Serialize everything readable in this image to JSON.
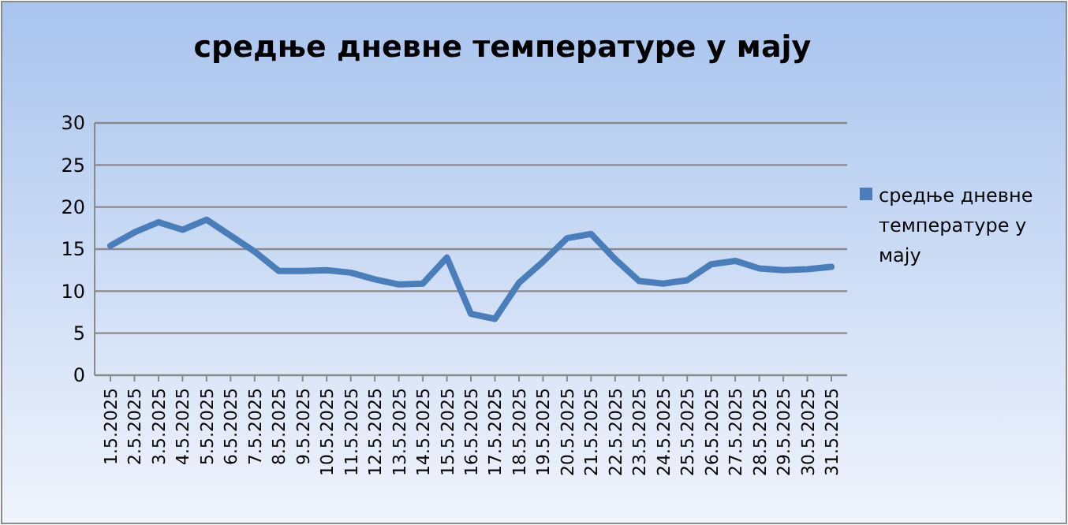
{
  "chart_data": {
    "type": "line",
    "title": "средње дневне температуре у мају",
    "categories": [
      "1.5.2025",
      "2.5.2025",
      "3.5.2025",
      "4.5.2025",
      "5.5.2025",
      "6.5.2025",
      "7.5.2025",
      "8.5.2025",
      "9.5.2025",
      "10.5.2025",
      "11.5.2025",
      "12.5.2025",
      "13.5.2025",
      "14.5.2025",
      "15.5.2025",
      "16.5.2025",
      "17.5.2025",
      "18.5.2025",
      "19.5.2025",
      "20.5.2025",
      "21.5.2025",
      "22.5.2025",
      "23.5.2025",
      "24.5.2025",
      "25.5.2025",
      "26.5.2025",
      "27.5.2025",
      "28.5.2025",
      "29.5.2025",
      "30.5.2025",
      "31.5.2025"
    ],
    "series": [
      {
        "name": "средње дневне температуре у мају",
        "color": "#4a7ebb",
        "values": [
          15.4,
          17,
          18.2,
          17.3,
          18.5,
          16.6,
          14.7,
          12.4,
          12.4,
          12.5,
          12.2,
          11.4,
          10.8,
          10.9,
          14,
          7.3,
          6.7,
          11,
          13.5,
          16.3,
          16.8,
          13.8,
          11.2,
          10.9,
          11.3,
          13.2,
          13.6,
          12.7,
          12.5,
          12.6,
          12.9
        ]
      }
    ],
    "ylim": [
      0,
      30
    ],
    "yticks": [
      0,
      5,
      10,
      15,
      20,
      25,
      30
    ],
    "grid": "y",
    "legend": "right",
    "marker": "none",
    "line_style": "solid"
  }
}
